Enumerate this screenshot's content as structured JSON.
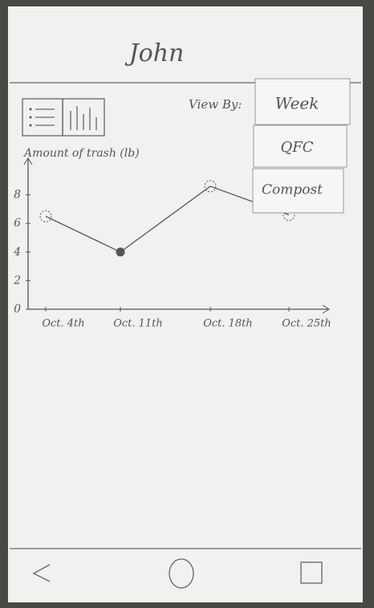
{
  "header": {
    "title": "John"
  },
  "view_by": {
    "label": "View By:",
    "options": [
      "Week",
      "QFC",
      "Compost"
    ]
  },
  "chart_data": {
    "type": "line",
    "y_label": "Amount of trash (lb)",
    "categories": [
      "Oct. 4th",
      "Oct. 11th",
      "Oct. 18th",
      "Oct. 25th"
    ],
    "values": [
      6.5,
      4,
      8.6,
      6.6
    ],
    "color": "#555555",
    "ylim": [
      0,
      10
    ],
    "yticks": [
      0,
      2,
      4,
      6,
      8
    ],
    "grid": false
  }
}
